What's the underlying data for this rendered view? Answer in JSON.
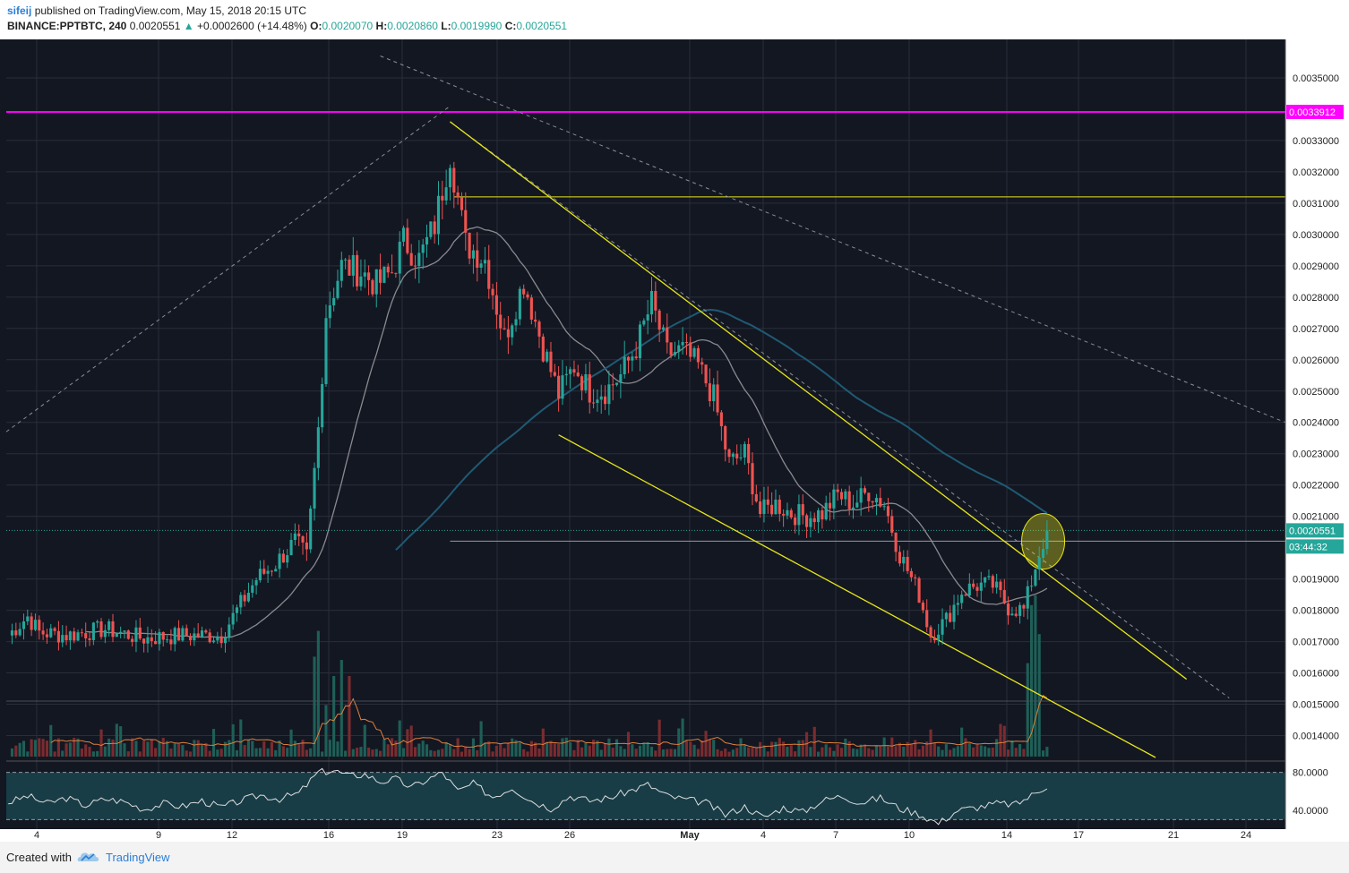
{
  "header": {
    "author": "sifeij",
    "published": "published on TradingView.com, May 15, 2018 20:15 UTC",
    "symbol": "BINANCE:PPTBTC, 240",
    "last": "0.0020551",
    "change_arrow": "▲",
    "change": "+0.0002600 (+14.48%)",
    "o_label": "O:",
    "o": "0.0020070",
    "h_label": "H:",
    "h": "0.0020860",
    "l_label": "L:",
    "l": "0.0019990",
    "c_label": "C:",
    "c": "0.0020551"
  },
  "footer": {
    "created": "Created with",
    "brand": "TradingView"
  },
  "colors": {
    "background": "#131722",
    "up": "#26a69a",
    "down": "#ef5350",
    "trend": "#e6e61a",
    "resistance": "#ff00ff",
    "ma_fast": "#8a8a8f",
    "ma_slow": "#1f5a73"
  },
  "chart_data": {
    "type": "candlestick",
    "y_ticks": [
      "0.0035000",
      "0.0033000",
      "0.0032000",
      "0.0031000",
      "0.0030000",
      "0.0029000",
      "0.0028000",
      "0.0027000",
      "0.0026000",
      "0.0025000",
      "0.0024000",
      "0.0023000",
      "0.0022000",
      "0.0021000",
      "0.0019000",
      "0.0018000",
      "0.0017000",
      "0.0016000",
      "0.0015000",
      "0.0014000"
    ],
    "ylim": [
      0.00133,
      0.00362
    ],
    "x_ticks": [
      "4",
      "9",
      "12",
      "16",
      "19",
      "23",
      "26",
      "May",
      "4",
      "7",
      "10",
      "14",
      "17",
      "21",
      "24"
    ],
    "price_labels": {
      "resistance": "0.0033912",
      "last": "0.0020551",
      "countdown": "03:44:32"
    },
    "resistance_level": 0.0033912,
    "last_price": 0.0020551,
    "horizontal_level_yellow": 0.00312,
    "price_path": [
      [
        0,
        0.00172
      ],
      [
        5,
        0.00178
      ],
      [
        8,
        0.00173
      ],
      [
        15,
        0.00172
      ],
      [
        25,
        0.00174
      ],
      [
        35,
        0.00171
      ],
      [
        45,
        0.00172
      ],
      [
        55,
        0.00172
      ],
      [
        64,
        0.0019
      ],
      [
        69,
        0.00195
      ],
      [
        74,
        0.00202
      ],
      [
        77,
        0.00197
      ],
      [
        80,
        0.00238
      ],
      [
        82,
        0.00275
      ],
      [
        86,
        0.0029
      ],
      [
        91,
        0.00288
      ],
      [
        95,
        0.00284
      ],
      [
        99,
        0.00288
      ],
      [
        102,
        0.00298
      ],
      [
        106,
        0.00292
      ],
      [
        110,
        0.00303
      ],
      [
        114,
        0.00326
      ],
      [
        118,
        0.00297
      ],
      [
        123,
        0.00292
      ],
      [
        128,
        0.00267
      ],
      [
        133,
        0.00285
      ],
      [
        138,
        0.00264
      ],
      [
        142,
        0.00249
      ],
      [
        146,
        0.00258
      ],
      [
        150,
        0.0025
      ],
      [
        154,
        0.0025
      ],
      [
        158,
        0.00255
      ],
      [
        162,
        0.00264
      ],
      [
        166,
        0.00278
      ],
      [
        170,
        0.00262
      ],
      [
        174,
        0.00263
      ],
      [
        178,
        0.00258
      ],
      [
        182,
        0.00248
      ],
      [
        186,
        0.00227
      ],
      [
        190,
        0.0023
      ],
      [
        194,
        0.00211
      ],
      [
        198,
        0.00214
      ],
      [
        202,
        0.00211
      ],
      [
        206,
        0.0021
      ],
      [
        210,
        0.00211
      ],
      [
        214,
        0.00217
      ],
      [
        218,
        0.00214
      ],
      [
        222,
        0.00218
      ],
      [
        226,
        0.00214
      ],
      [
        230,
        0.00198
      ],
      [
        235,
        0.00185
      ],
      [
        238,
        0.00172
      ],
      [
        242,
        0.00177
      ],
      [
        246,
        0.00186
      ],
      [
        250,
        0.00188
      ],
      [
        254,
        0.00188
      ],
      [
        258,
        0.00181
      ],
      [
        262,
        0.0018
      ],
      [
        265,
        0.00194
      ],
      [
        268,
        0.00206
      ]
    ],
    "rsi": {
      "levels": [
        "80.0000",
        "40.0000"
      ],
      "range": [
        20,
        90
      ]
    },
    "rsi_path": [
      [
        0,
        48
      ],
      [
        5,
        55
      ],
      [
        10,
        47
      ],
      [
        15,
        53
      ],
      [
        20,
        45
      ],
      [
        25,
        52
      ],
      [
        30,
        49
      ],
      [
        35,
        41
      ],
      [
        40,
        47
      ],
      [
        45,
        44
      ],
      [
        50,
        50
      ],
      [
        55,
        43
      ],
      [
        60,
        50
      ],
      [
        65,
        56
      ],
      [
        70,
        52
      ],
      [
        75,
        58
      ],
      [
        80,
        80
      ],
      [
        84,
        82
      ],
      [
        88,
        76
      ],
      [
        92,
        78
      ],
      [
        96,
        70
      ],
      [
        100,
        73
      ],
      [
        104,
        64
      ],
      [
        108,
        72
      ],
      [
        112,
        80
      ],
      [
        116,
        60
      ],
      [
        120,
        68
      ],
      [
        125,
        54
      ],
      [
        130,
        64
      ],
      [
        135,
        50
      ],
      [
        140,
        42
      ],
      [
        145,
        55
      ],
      [
        150,
        50
      ],
      [
        155,
        53
      ],
      [
        160,
        60
      ],
      [
        165,
        67
      ],
      [
        170,
        55
      ],
      [
        175,
        51
      ],
      [
        180,
        48
      ],
      [
        185,
        35
      ],
      [
        190,
        44
      ],
      [
        195,
        32
      ],
      [
        200,
        43
      ],
      [
        205,
        38
      ],
      [
        210,
        50
      ],
      [
        215,
        55
      ],
      [
        220,
        48
      ],
      [
        225,
        53
      ],
      [
        230,
        42
      ],
      [
        235,
        36
      ],
      [
        240,
        26
      ],
      [
        245,
        40
      ],
      [
        250,
        43
      ],
      [
        255,
        47
      ],
      [
        260,
        46
      ],
      [
        265,
        58
      ],
      [
        268,
        66
      ]
    ],
    "volume_spikes": [
      [
        79,
        0.62
      ],
      [
        80,
        0.78
      ],
      [
        82,
        0.32
      ],
      [
        84,
        0.5
      ],
      [
        86,
        0.6
      ],
      [
        88,
        0.5
      ],
      [
        263,
        0.58
      ],
      [
        264,
        0.94
      ],
      [
        265,
        1.0
      ],
      [
        266,
        0.76
      ]
    ]
  }
}
